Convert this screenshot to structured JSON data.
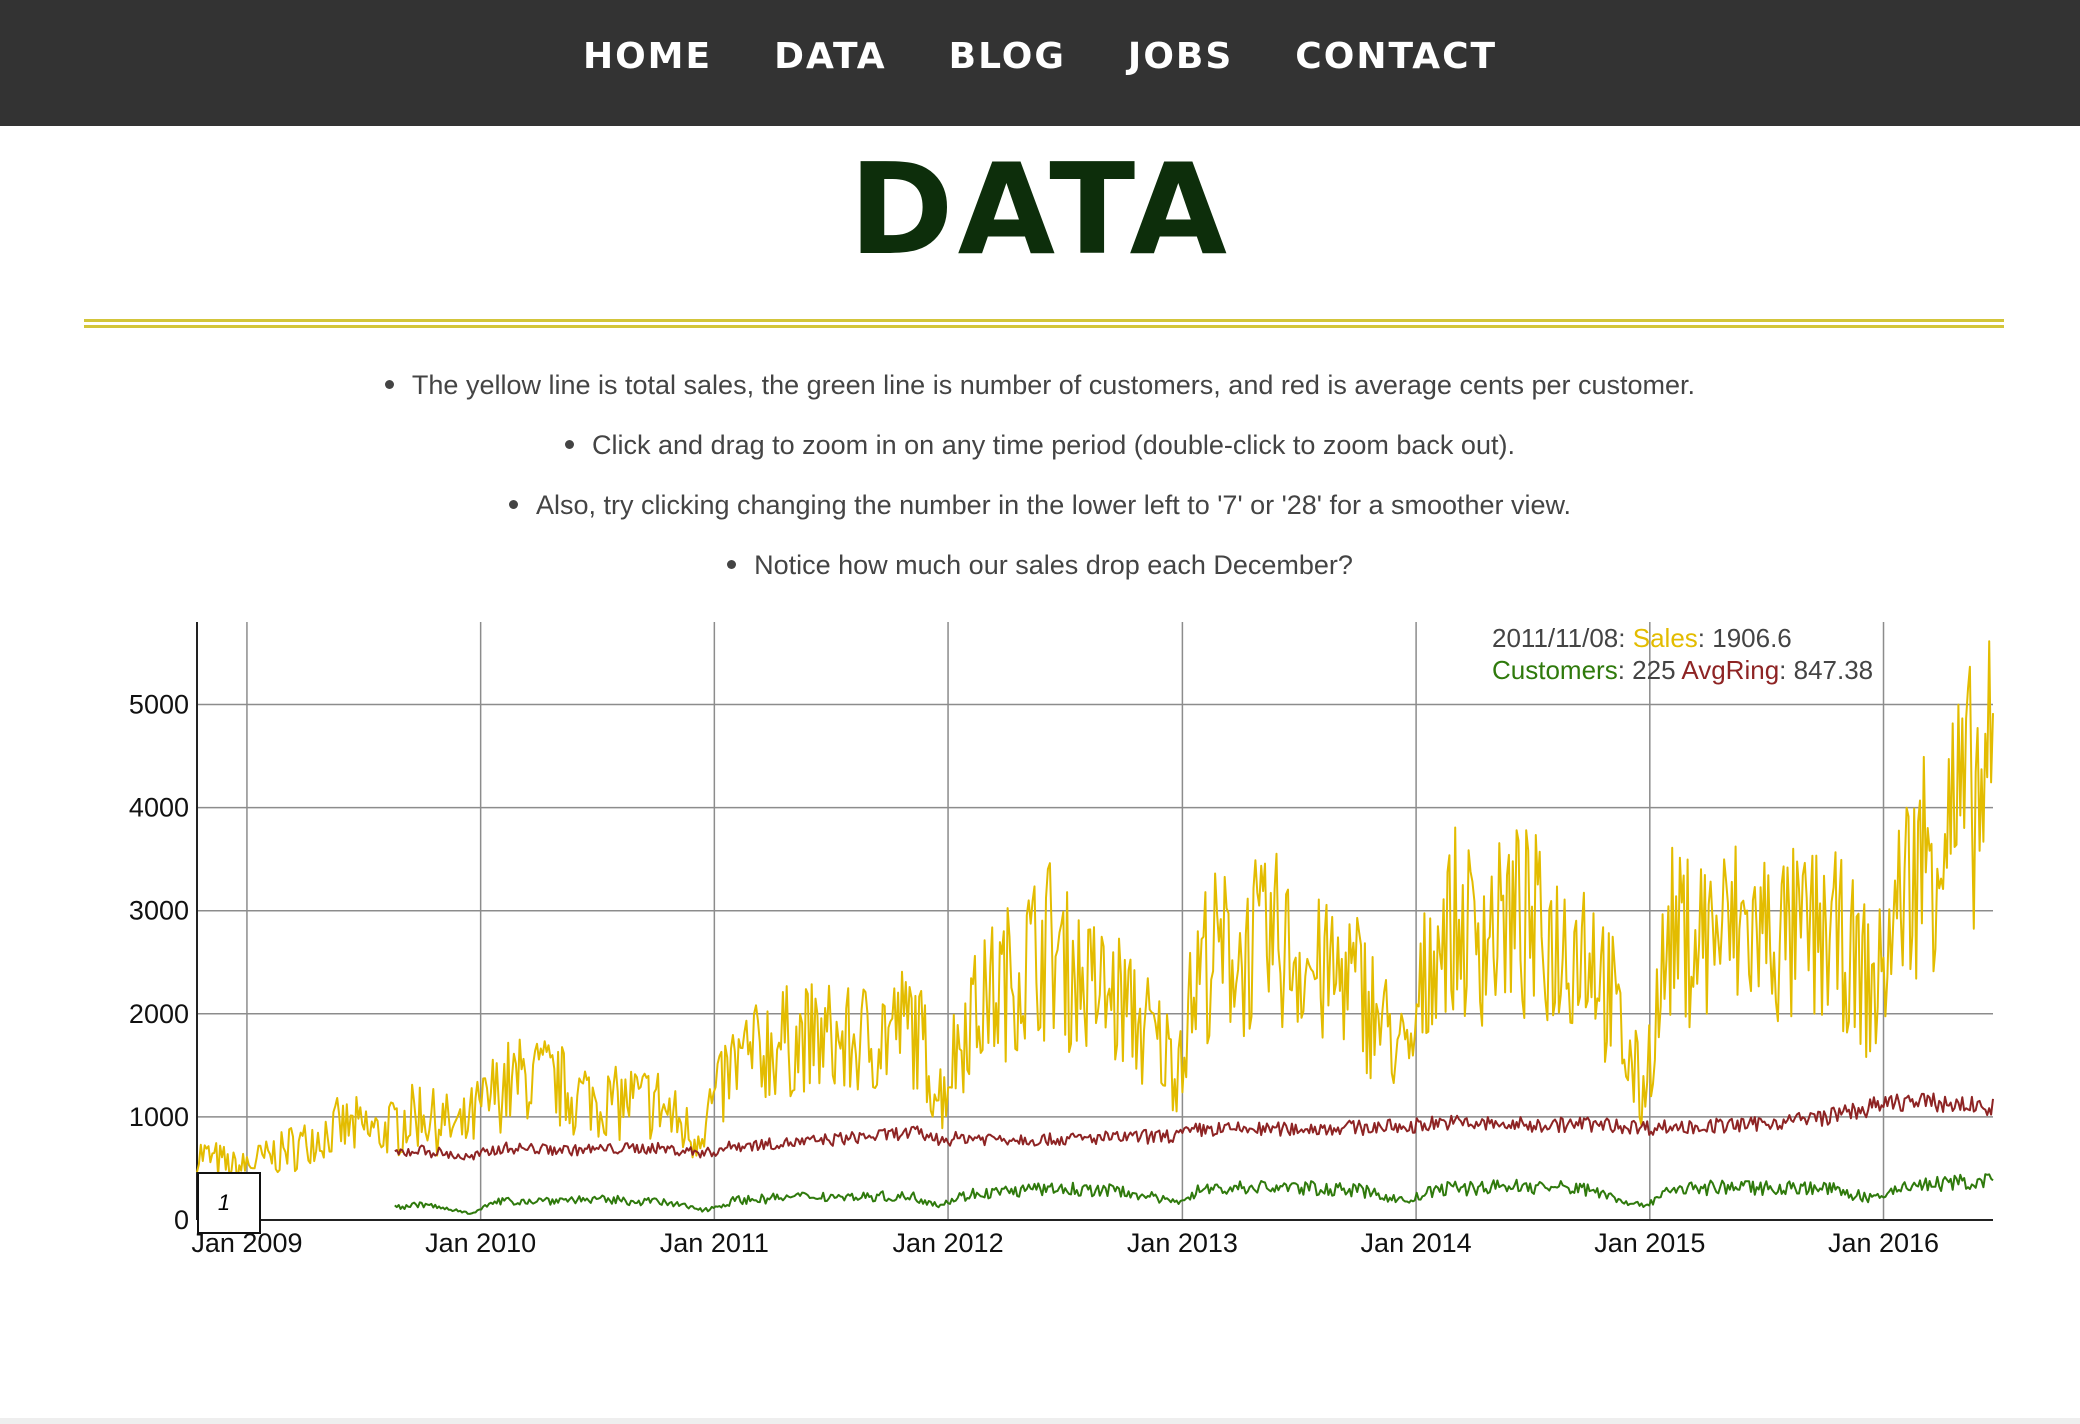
{
  "nav": {
    "items": [
      "HOME",
      "DATA",
      "BLOG",
      "JOBS",
      "CONTACT"
    ]
  },
  "page": {
    "title": "DATA",
    "notes": [
      "The yellow line is total sales, the green line is number of customers, and red is average cents per customer.",
      "Click and drag to zoom in on any time period (double-click to zoom back out).",
      "Also, try clicking changing the number in the lower left to '7' or '28' for a smoother view.",
      "Notice how much our sales drop each December?"
    ],
    "roll_period": "1"
  },
  "colors": {
    "sales": "#e3bc00",
    "customers": "#2f7a0c",
    "avgring": "#8e2424",
    "title": "#0d2e0b",
    "nav_bg": "#333333",
    "rule": "#d3c53a"
  },
  "legend": {
    "date": "2011/11/08",
    "sales_label": "Sales",
    "sales_value": "1906.6",
    "customers_label": "Customers",
    "customers_value": "225",
    "avgring_label": "AvgRing",
    "avgring_value": "847.38"
  },
  "chart_data": {
    "type": "line",
    "title": "",
    "xlabel": "",
    "ylabel": "",
    "x_range": [
      "2008-10-15",
      "2016-06-20"
    ],
    "ylim": [
      0,
      5800
    ],
    "grid": true,
    "legend_position": "top-right",
    "x_tick_labels": [
      "Jan 2009",
      "Jan 2010",
      "Jan 2011",
      "Jan 2012",
      "Jan 2013",
      "Jan 2014",
      "Jan 2015",
      "Jan 2016"
    ],
    "y_tick_labels": [
      "0",
      "1000",
      "2000",
      "3000",
      "4000",
      "5000"
    ],
    "series": [
      {
        "name": "Sales",
        "x": [
          "2008-10-15",
          "2008-12-15",
          "2009-02-01",
          "2009-04-01",
          "2009-06-01",
          "2009-08-01",
          "2009-10-01",
          "2009-12-01",
          "2010-02-01",
          "2010-04-01",
          "2010-06-01",
          "2010-08-01",
          "2010-10-01",
          "2010-12-01",
          "2011-02-01",
          "2011-04-01",
          "2011-06-01",
          "2011-08-01",
          "2011-11-08",
          "2011-12-20",
          "2012-02-01",
          "2012-04-01",
          "2012-06-01",
          "2012-08-01",
          "2012-10-01",
          "2012-12-20",
          "2013-02-01",
          "2013-04-01",
          "2013-06-01",
          "2013-08-01",
          "2013-10-01",
          "2013-12-20",
          "2014-02-01",
          "2014-04-01",
          "2014-06-01",
          "2014-08-01",
          "2014-10-01",
          "2014-12-20",
          "2015-02-01",
          "2015-04-01",
          "2015-06-01",
          "2015-08-01",
          "2015-10-01",
          "2015-12-20",
          "2016-02-01",
          "2016-04-01",
          "2016-06-20"
        ],
        "y": [
          650,
          500,
          600,
          750,
          900,
          850,
          1050,
          850,
          1300,
          1400,
          1200,
          1150,
          1150,
          800,
          1500,
          1700,
          1750,
          1700,
          1906.6,
          1200,
          2000,
          2300,
          2700,
          2300,
          2100,
          1500,
          2500,
          2600,
          2700,
          2400,
          2300,
          1500,
          2800,
          2800,
          2900,
          2700,
          2700,
          1200,
          2700,
          2800,
          2800,
          2700,
          2800,
          2200,
          3200,
          3800,
          4200
        ]
      },
      {
        "name": "Customers",
        "x": [
          "2009-08-20",
          "2009-10-01",
          "2009-12-15",
          "2010-02-01",
          "2010-06-01",
          "2010-10-01",
          "2010-12-20",
          "2011-02-01",
          "2011-06-01",
          "2011-11-08",
          "2011-12-20",
          "2012-02-01",
          "2012-06-01",
          "2012-10-01",
          "2012-12-20",
          "2013-02-01",
          "2013-06-01",
          "2013-10-01",
          "2013-12-20",
          "2014-02-01",
          "2014-06-01",
          "2014-10-01",
          "2014-12-20",
          "2015-02-01",
          "2015-06-01",
          "2015-10-01",
          "2015-12-20",
          "2016-02-01",
          "2016-06-20"
        ],
        "y": [
          120,
          150,
          70,
          180,
          200,
          180,
          100,
          190,
          230,
          225,
          150,
          250,
          300,
          280,
          170,
          300,
          320,
          290,
          180,
          300,
          330,
          300,
          130,
          300,
          320,
          310,
          200,
          330,
          380
        ]
      },
      {
        "name": "AvgRing",
        "x": [
          "2009-08-20",
          "2009-10-01",
          "2009-12-15",
          "2010-02-01",
          "2010-06-01",
          "2010-10-01",
          "2010-12-20",
          "2011-02-01",
          "2011-06-01",
          "2011-11-08",
          "2011-12-20",
          "2012-02-01",
          "2012-06-01",
          "2012-10-01",
          "2012-12-20",
          "2013-02-01",
          "2013-06-01",
          "2013-10-01",
          "2013-12-20",
          "2014-02-01",
          "2014-06-01",
          "2014-10-01",
          "2014-12-20",
          "2015-02-01",
          "2015-06-01",
          "2015-10-01",
          "2015-12-20",
          "2016-02-01",
          "2016-06-20"
        ],
        "y": [
          650,
          680,
          600,
          700,
          680,
          700,
          650,
          720,
          760,
          847.38,
          780,
          800,
          780,
          800,
          820,
          880,
          880,
          900,
          900,
          950,
          920,
          930,
          900,
          900,
          920,
          1000,
          1100,
          1150,
          1100
        ]
      }
    ]
  }
}
